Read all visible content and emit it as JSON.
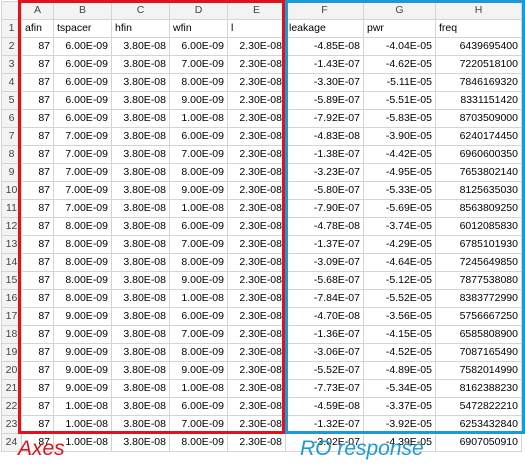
{
  "colors": {
    "axes_box": "#e0121b",
    "ro_box": "#1a9ad6",
    "header_bg": "#f3f3f3",
    "grid": "#d4d4d4"
  },
  "column_letters": [
    "A",
    "B",
    "C",
    "D",
    "E",
    "F",
    "G",
    "H"
  ],
  "row_numbers": [
    "1",
    "2",
    "3",
    "4",
    "5",
    "6",
    "7",
    "8",
    "9",
    "10",
    "11",
    "12",
    "13",
    "14",
    "15",
    "16",
    "17",
    "18",
    "19",
    "20",
    "21",
    "22",
    "23",
    "24"
  ],
  "headers": [
    "afin",
    "tspacer",
    "hfin",
    "wfin",
    "l",
    "leakage",
    "pwr",
    "freq"
  ],
  "rows": [
    [
      "87",
      "6.00E-09",
      "3.80E-08",
      "6.00E-09",
      "2.30E-08",
      "-4.85E-08",
      "-4.04E-05",
      "6439695400"
    ],
    [
      "87",
      "6.00E-09",
      "3.80E-08",
      "7.00E-09",
      "2.30E-08",
      "-1.43E-07",
      "-4.62E-05",
      "7220518100"
    ],
    [
      "87",
      "6.00E-09",
      "3.80E-08",
      "8.00E-09",
      "2.30E-08",
      "-3.30E-07",
      "-5.11E-05",
      "7846169320"
    ],
    [
      "87",
      "6.00E-09",
      "3.80E-08",
      "9.00E-09",
      "2.30E-08",
      "-5.89E-07",
      "-5.51E-05",
      "8331151420"
    ],
    [
      "87",
      "6.00E-09",
      "3.80E-08",
      "1.00E-08",
      "2.30E-08",
      "-7.92E-07",
      "-5.83E-05",
      "8703509000"
    ],
    [
      "87",
      "7.00E-09",
      "3.80E-08",
      "6.00E-09",
      "2.30E-08",
      "-4.83E-08",
      "-3.90E-05",
      "6240174450"
    ],
    [
      "87",
      "7.00E-09",
      "3.80E-08",
      "7.00E-09",
      "2.30E-08",
      "-1.38E-07",
      "-4.42E-05",
      "6960600350"
    ],
    [
      "87",
      "7.00E-09",
      "3.80E-08",
      "8.00E-09",
      "2.30E-08",
      "-3.23E-07",
      "-4.95E-05",
      "7653802140"
    ],
    [
      "87",
      "7.00E-09",
      "3.80E-08",
      "9.00E-09",
      "2.30E-08",
      "-5.80E-07",
      "-5.33E-05",
      "8125635030"
    ],
    [
      "87",
      "7.00E-09",
      "3.80E-08",
      "1.00E-08",
      "2.30E-08",
      "-7.90E-07",
      "-5.69E-05",
      "8563809250"
    ],
    [
      "87",
      "8.00E-09",
      "3.80E-08",
      "6.00E-09",
      "2.30E-08",
      "-4.78E-08",
      "-3.74E-05",
      "6012085830"
    ],
    [
      "87",
      "8.00E-09",
      "3.80E-08",
      "7.00E-09",
      "2.30E-08",
      "-1.37E-07",
      "-4.29E-05",
      "6785101930"
    ],
    [
      "87",
      "8.00E-09",
      "3.80E-08",
      "8.00E-09",
      "2.30E-08",
      "-3.09E-07",
      "-4.64E-05",
      "7245649850"
    ],
    [
      "87",
      "8.00E-09",
      "3.80E-08",
      "9.00E-09",
      "2.30E-08",
      "-5.68E-07",
      "-5.12E-05",
      "7877538080"
    ],
    [
      "87",
      "8.00E-09",
      "3.80E-08",
      "1.00E-08",
      "2.30E-08",
      "-7.84E-07",
      "-5.52E-05",
      "8383772990"
    ],
    [
      "87",
      "9.00E-09",
      "3.80E-08",
      "6.00E-09",
      "2.30E-08",
      "-4.70E-08",
      "-3.56E-05",
      "5756667250"
    ],
    [
      "87",
      "9.00E-09",
      "3.80E-08",
      "7.00E-09",
      "2.30E-08",
      "-1.36E-07",
      "-4.15E-05",
      "6585808900"
    ],
    [
      "87",
      "9.00E-09",
      "3.80E-08",
      "8.00E-09",
      "2.30E-08",
      "-3.06E-07",
      "-4.52E-05",
      "7087165490"
    ],
    [
      "87",
      "9.00E-09",
      "3.80E-08",
      "9.00E-09",
      "2.30E-08",
      "-5.52E-07",
      "-4.89E-05",
      "7582014990"
    ],
    [
      "87",
      "9.00E-09",
      "3.80E-08",
      "1.00E-08",
      "2.30E-08",
      "-7.73E-07",
      "-5.34E-05",
      "8162388230"
    ],
    [
      "87",
      "1.00E-08",
      "3.80E-08",
      "6.00E-09",
      "2.30E-08",
      "-4.59E-08",
      "-3.37E-05",
      "5472822210"
    ],
    [
      "87",
      "1.00E-08",
      "3.80E-08",
      "7.00E-09",
      "2.30E-08",
      "-1.32E-07",
      "-3.92E-05",
      "6253432840"
    ],
    [
      "87",
      "1.00E-08",
      "3.80E-08",
      "8.00E-09",
      "2.30E-08",
      "-3.02E-07",
      "-4.39E-05",
      "6907050910"
    ]
  ],
  "captions": {
    "axes": "Axes",
    "ro": "RO response"
  }
}
